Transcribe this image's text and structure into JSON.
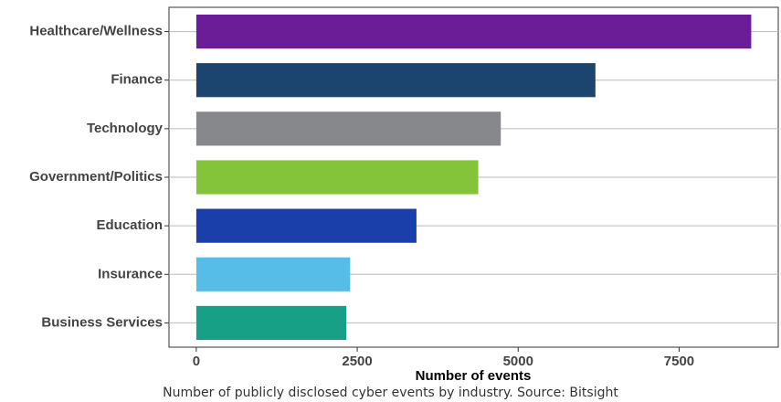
{
  "chart_data": {
    "type": "barh",
    "categories": [
      "Healthcare/Wellness",
      "Finance",
      "Technology",
      "Government/Politics",
      "Education",
      "Insurance",
      "Business Services"
    ],
    "values": [
      8620,
      6200,
      4730,
      4380,
      3420,
      2390,
      2330
    ],
    "colors": [
      "#6a1d96",
      "#1b446e",
      "#87888c",
      "#84c43a",
      "#1a3faa",
      "#56bde8",
      "#18a086"
    ],
    "xlim": [
      -424,
      9040
    ],
    "xticks": [
      0,
      2500,
      5000,
      7500
    ],
    "xlabel": "Number of events",
    "caption": "Number of publicly disclosed cyber events by industry. Source: Bitsight",
    "grid": true
  }
}
